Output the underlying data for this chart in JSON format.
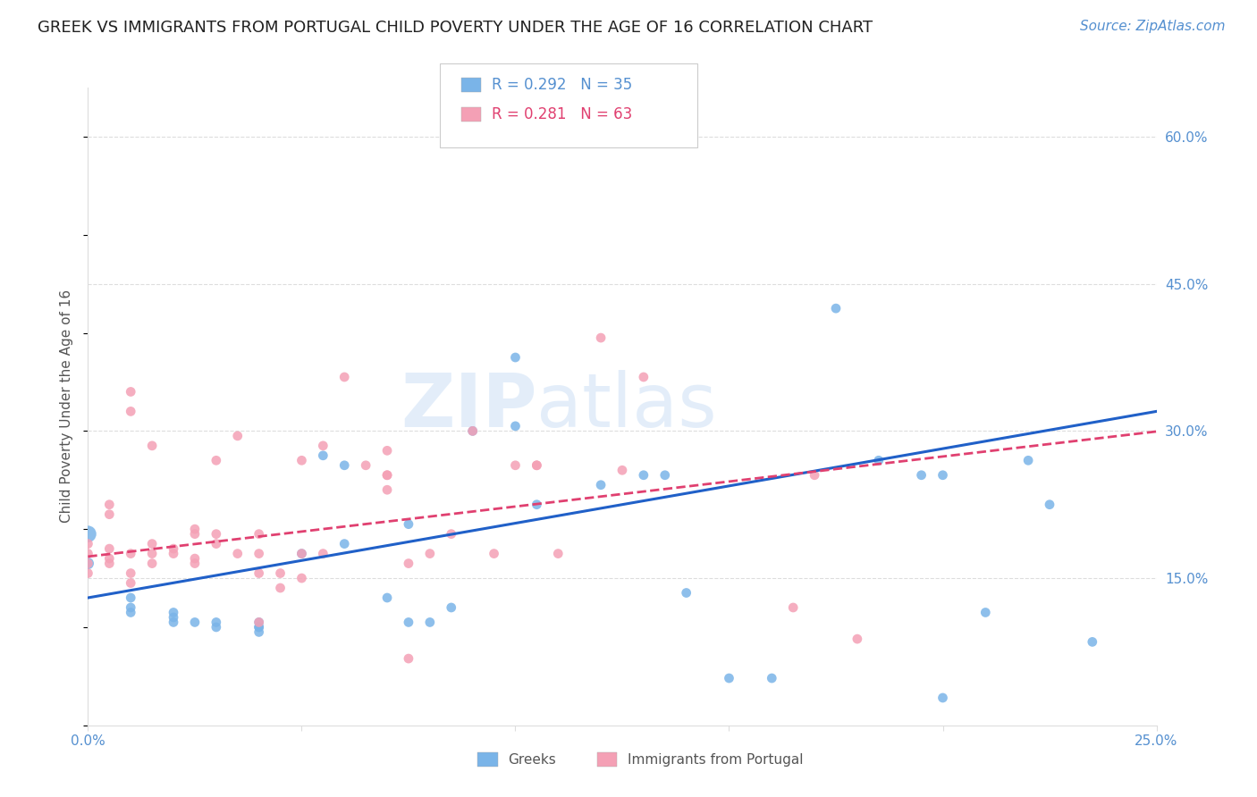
{
  "title": "GREEK VS IMMIGRANTS FROM PORTUGAL CHILD POVERTY UNDER THE AGE OF 16 CORRELATION CHART",
  "source": "Source: ZipAtlas.com",
  "ylabel": "Child Poverty Under the Age of 16",
  "ytick_labels": [
    "15.0%",
    "30.0%",
    "45.0%",
    "60.0%"
  ],
  "ytick_values": [
    0.15,
    0.3,
    0.45,
    0.6
  ],
  "xmin": 0.0,
  "xmax": 0.25,
  "ymin": 0.0,
  "ymax": 0.65,
  "legend_blue_r": "0.292",
  "legend_blue_n": "35",
  "legend_pink_r": "0.281",
  "legend_pink_n": "63",
  "blue_label": "Greeks",
  "pink_label": "Immigrants from Portugal",
  "background_color": "#ffffff",
  "plot_bg_color": "#ffffff",
  "blue_color": "#7ab4e8",
  "pink_color": "#f4a0b5",
  "line_blue": "#2060c8",
  "line_pink": "#e04070",
  "axis_color": "#5590d0",
  "watermark_zip": "ZIP",
  "watermark_atlas": "atlas",
  "blue_points": [
    [
      0.0,
      0.195
    ],
    [
      0.0,
      0.165
    ],
    [
      0.01,
      0.13
    ],
    [
      0.01,
      0.115
    ],
    [
      0.01,
      0.12
    ],
    [
      0.02,
      0.115
    ],
    [
      0.02,
      0.11
    ],
    [
      0.02,
      0.105
    ],
    [
      0.025,
      0.105
    ],
    [
      0.03,
      0.1
    ],
    [
      0.03,
      0.105
    ],
    [
      0.04,
      0.105
    ],
    [
      0.04,
      0.1
    ],
    [
      0.04,
      0.1
    ],
    [
      0.04,
      0.095
    ],
    [
      0.05,
      0.175
    ],
    [
      0.055,
      0.275
    ],
    [
      0.06,
      0.265
    ],
    [
      0.06,
      0.185
    ],
    [
      0.07,
      0.13
    ],
    [
      0.075,
      0.205
    ],
    [
      0.075,
      0.105
    ],
    [
      0.08,
      0.105
    ],
    [
      0.085,
      0.12
    ],
    [
      0.09,
      0.3
    ],
    [
      0.1,
      0.375
    ],
    [
      0.1,
      0.305
    ],
    [
      0.105,
      0.225
    ],
    [
      0.12,
      0.245
    ],
    [
      0.13,
      0.255
    ],
    [
      0.135,
      0.255
    ],
    [
      0.14,
      0.135
    ],
    [
      0.15,
      0.048
    ],
    [
      0.16,
      0.048
    ],
    [
      0.175,
      0.425
    ],
    [
      0.185,
      0.27
    ],
    [
      0.195,
      0.255
    ],
    [
      0.2,
      0.255
    ],
    [
      0.2,
      0.028
    ],
    [
      0.21,
      0.115
    ],
    [
      0.22,
      0.27
    ],
    [
      0.225,
      0.225
    ],
    [
      0.235,
      0.085
    ]
  ],
  "blue_sizes": [
    180,
    90,
    60,
    60,
    60,
    60,
    60,
    60,
    60,
    60,
    60,
    60,
    60,
    60,
    60,
    60,
    60,
    60,
    60,
    60,
    60,
    60,
    60,
    60,
    60,
    60,
    60,
    60,
    60,
    60,
    60,
    60,
    60,
    60,
    60,
    60,
    60,
    60,
    60,
    60,
    60,
    60,
    60
  ],
  "pink_points": [
    [
      0.0,
      0.185
    ],
    [
      0.0,
      0.175
    ],
    [
      0.0,
      0.165
    ],
    [
      0.0,
      0.155
    ],
    [
      0.005,
      0.225
    ],
    [
      0.005,
      0.215
    ],
    [
      0.005,
      0.18
    ],
    [
      0.005,
      0.17
    ],
    [
      0.005,
      0.165
    ],
    [
      0.01,
      0.34
    ],
    [
      0.01,
      0.32
    ],
    [
      0.01,
      0.175
    ],
    [
      0.01,
      0.155
    ],
    [
      0.01,
      0.145
    ],
    [
      0.015,
      0.285
    ],
    [
      0.015,
      0.185
    ],
    [
      0.015,
      0.175
    ],
    [
      0.015,
      0.165
    ],
    [
      0.02,
      0.18
    ],
    [
      0.02,
      0.175
    ],
    [
      0.025,
      0.2
    ],
    [
      0.025,
      0.195
    ],
    [
      0.025,
      0.17
    ],
    [
      0.025,
      0.165
    ],
    [
      0.03,
      0.27
    ],
    [
      0.03,
      0.195
    ],
    [
      0.03,
      0.185
    ],
    [
      0.035,
      0.295
    ],
    [
      0.035,
      0.175
    ],
    [
      0.04,
      0.195
    ],
    [
      0.04,
      0.175
    ],
    [
      0.04,
      0.155
    ],
    [
      0.04,
      0.105
    ],
    [
      0.045,
      0.155
    ],
    [
      0.045,
      0.14
    ],
    [
      0.05,
      0.27
    ],
    [
      0.05,
      0.175
    ],
    [
      0.05,
      0.15
    ],
    [
      0.055,
      0.285
    ],
    [
      0.055,
      0.175
    ],
    [
      0.06,
      0.355
    ],
    [
      0.065,
      0.265
    ],
    [
      0.07,
      0.28
    ],
    [
      0.07,
      0.255
    ],
    [
      0.07,
      0.255
    ],
    [
      0.07,
      0.24
    ],
    [
      0.075,
      0.165
    ],
    [
      0.075,
      0.068
    ],
    [
      0.08,
      0.175
    ],
    [
      0.085,
      0.195
    ],
    [
      0.09,
      0.3
    ],
    [
      0.095,
      0.175
    ],
    [
      0.1,
      0.265
    ],
    [
      0.105,
      0.265
    ],
    [
      0.105,
      0.265
    ],
    [
      0.11,
      0.175
    ],
    [
      0.12,
      0.395
    ],
    [
      0.125,
      0.26
    ],
    [
      0.13,
      0.355
    ],
    [
      0.165,
      0.12
    ],
    [
      0.17,
      0.255
    ],
    [
      0.18,
      0.088
    ]
  ],
  "pink_sizes": [
    60,
    60,
    60,
    60,
    60,
    60,
    60,
    60,
    60,
    60,
    60,
    60,
    60,
    60,
    60,
    60,
    60,
    60,
    60,
    60,
    60,
    60,
    60,
    60,
    60,
    60,
    60,
    60,
    60,
    60,
    60,
    60,
    60,
    60,
    60,
    60,
    60,
    60,
    60,
    60,
    60,
    60,
    60,
    60,
    60,
    60,
    60,
    60,
    60,
    60,
    60,
    60,
    60,
    60,
    60,
    60,
    60,
    60,
    60,
    60,
    60,
    60
  ],
  "blue_trendline_intercept": 0.13,
  "blue_trendline_slope": 0.76,
  "pink_trendline_intercept": 0.172,
  "pink_trendline_slope": 0.51,
  "grid_color": "#dddddd",
  "title_fontsize": 13,
  "axis_label_fontsize": 11,
  "tick_fontsize": 11,
  "source_fontsize": 11
}
